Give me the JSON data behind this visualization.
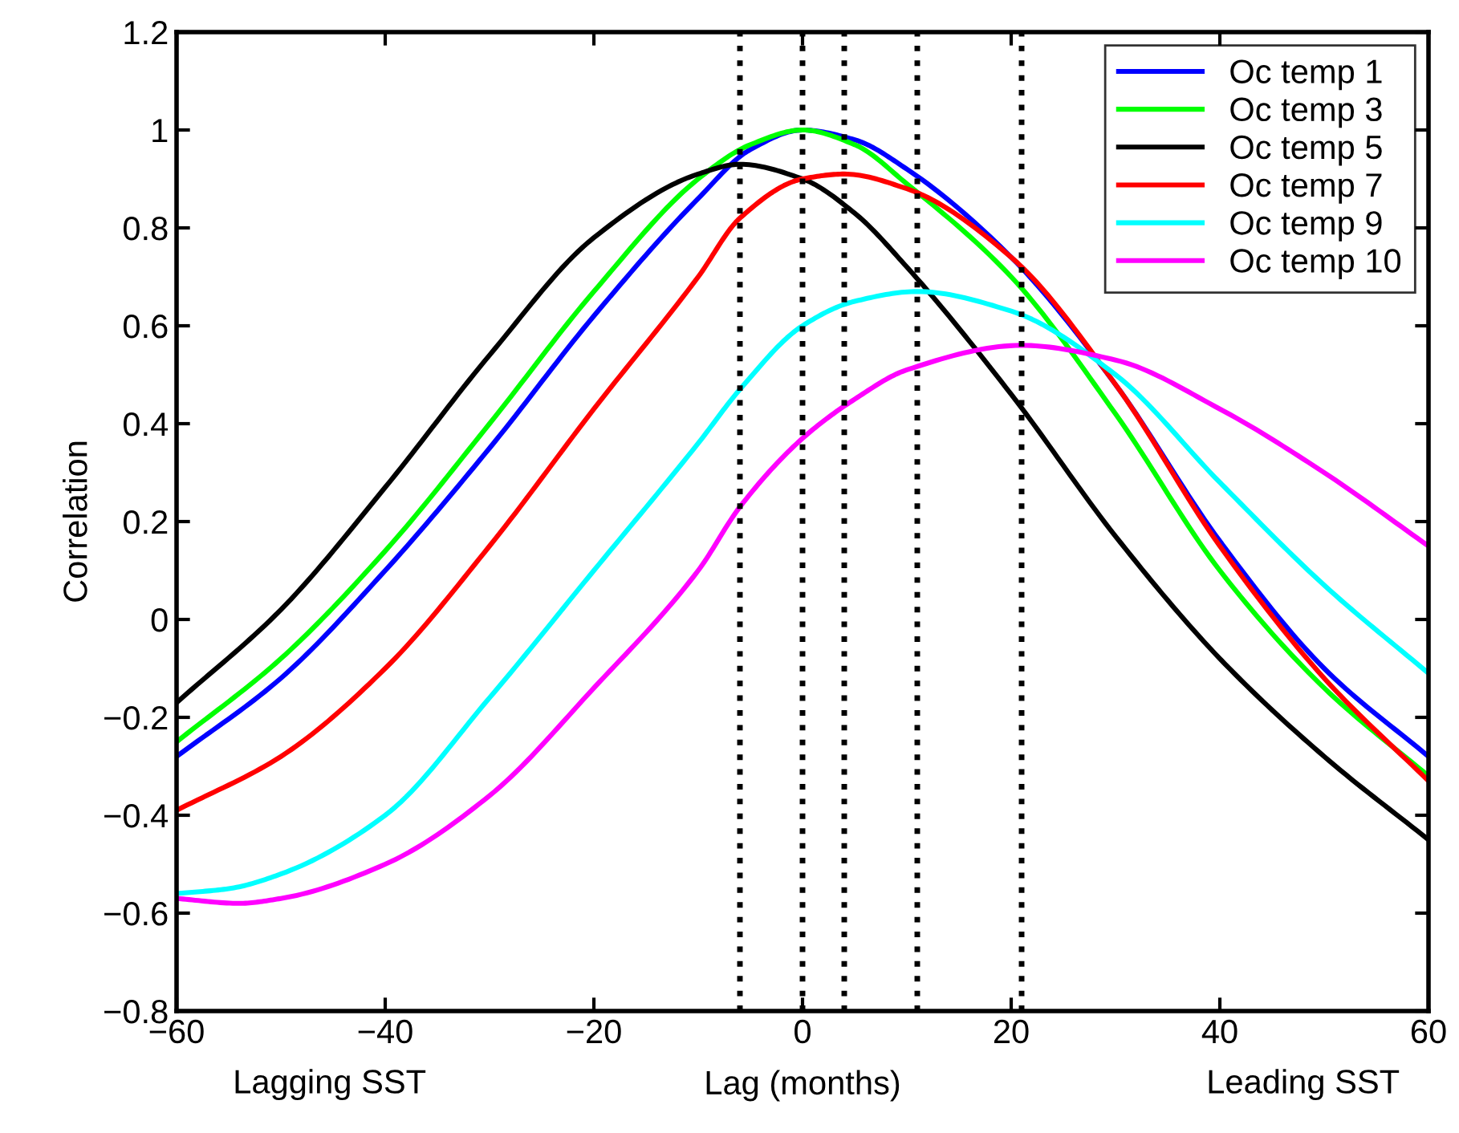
{
  "chart_data": {
    "type": "line",
    "xlabel": "Lag (months)",
    "ylabel": "Correlation",
    "annotations": [
      "Lagging SST",
      "Leading SST"
    ],
    "xlim": [
      -60,
      60
    ],
    "ylim": [
      -0.8,
      1.2
    ],
    "xticks": [
      {
        "value": -60,
        "label": "−60"
      },
      {
        "value": -40,
        "label": "−40"
      },
      {
        "value": -20,
        "label": "−20"
      },
      0,
      20,
      40,
      60
    ],
    "yticks": [
      {
        "value": -0.8,
        "label": "−0.8"
      },
      {
        "value": -0.6,
        "label": "−0.6"
      },
      {
        "value": -0.4,
        "label": "−0.4"
      },
      {
        "value": -0.2,
        "label": "−0.2"
      },
      0,
      0.2,
      0.4,
      0.6,
      0.8,
      1,
      1.2
    ],
    "grid": false,
    "legend": "top right",
    "line_style": "solid",
    "series": [
      {
        "name": "Oc temp 1",
        "color": "#0000ff",
        "x": [
          -60,
          -50,
          -40,
          -30,
          -20,
          -10,
          -5,
          0,
          5,
          10,
          20,
          30,
          40,
          50,
          60
        ],
        "values": [
          -0.28,
          -0.12,
          0.1,
          0.35,
          0.62,
          0.86,
          0.96,
          1.0,
          0.98,
          0.92,
          0.74,
          0.48,
          0.16,
          -0.1,
          -0.28
        ]
      },
      {
        "name": "Oc temp 3",
        "color": "#00ff00",
        "x": [
          -60,
          -50,
          -40,
          -30,
          -20,
          -10,
          -5,
          0,
          5,
          10,
          20,
          30,
          40,
          50,
          60
        ],
        "values": [
          -0.25,
          -0.08,
          0.14,
          0.4,
          0.67,
          0.9,
          0.97,
          1.0,
          0.97,
          0.89,
          0.7,
          0.42,
          0.1,
          -0.14,
          -0.32
        ]
      },
      {
        "name": "Oc temp 5",
        "color": "#000000",
        "x": [
          -60,
          -50,
          -40,
          -30,
          -20,
          -10,
          -6,
          0,
          5,
          10,
          20,
          30,
          40,
          50,
          60
        ],
        "values": [
          -0.17,
          0.02,
          0.27,
          0.54,
          0.78,
          0.91,
          0.93,
          0.9,
          0.83,
          0.72,
          0.46,
          0.17,
          -0.08,
          -0.28,
          -0.45
        ]
      },
      {
        "name": "Oc temp 7",
        "color": "#ff0000",
        "x": [
          -60,
          -50,
          -40,
          -30,
          -20,
          -10,
          -6,
          0,
          4,
          10,
          20,
          30,
          40,
          50,
          60
        ],
        "values": [
          -0.39,
          -0.28,
          -0.1,
          0.15,
          0.43,
          0.7,
          0.82,
          0.9,
          0.91,
          0.88,
          0.74,
          0.48,
          0.15,
          -0.12,
          -0.33
        ]
      },
      {
        "name": "Oc temp 9",
        "color": "#00ffff",
        "x": [
          -60,
          -55,
          -50,
          -40,
          -30,
          -20,
          -10,
          -6,
          0,
          5,
          11,
          20,
          30,
          40,
          50,
          60
        ],
        "values": [
          -0.56,
          -0.55,
          -0.52,
          -0.4,
          -0.16,
          0.1,
          0.36,
          0.47,
          0.6,
          0.65,
          0.67,
          0.63,
          0.5,
          0.28,
          0.07,
          -0.11
        ]
      },
      {
        "name": "Oc temp 10",
        "color": "#ff00ff",
        "x": [
          -60,
          -54,
          -50,
          -40,
          -30,
          -20,
          -10,
          -6,
          0,
          5,
          10,
          21,
          30,
          40,
          50,
          60
        ],
        "values": [
          -0.57,
          -0.58,
          -0.57,
          -0.5,
          -0.36,
          -0.14,
          0.1,
          0.23,
          0.37,
          0.45,
          0.51,
          0.56,
          0.53,
          0.43,
          0.3,
          0.15
        ]
      }
    ],
    "ref_lines": [
      {
        "axis": "x",
        "value": -6,
        "color": "#000000",
        "line_style": "dotted"
      },
      {
        "axis": "x",
        "value": 0,
        "color": "#000000",
        "line_style": "dotted"
      },
      {
        "axis": "x",
        "value": 4,
        "color": "#000000",
        "line_style": "dotted"
      },
      {
        "axis": "x",
        "value": 11,
        "color": "#000000",
        "line_style": "dotted"
      },
      {
        "axis": "x",
        "value": 21,
        "color": "#000000",
        "line_style": "dotted"
      }
    ]
  }
}
